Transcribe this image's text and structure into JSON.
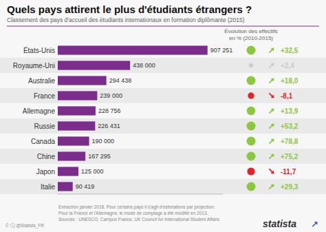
{
  "chart_data": {
    "type": "bar",
    "orientation": "horizontal",
    "title": "Quels pays attirent le plus d'étudiants étrangers ?",
    "subtitle": "Classement des pays d'accueil des étudiants internationaux en formation diplômante (2015)",
    "categories": [
      "États-Unis",
      "Royaume-Uni",
      "Australie",
      "France",
      "Allemagne",
      "Russie",
      "Canada",
      "Chine",
      "Japon",
      "Italie"
    ],
    "values": [
      907251,
      438000,
      294438,
      239000,
      228756,
      226431,
      190000,
      167295,
      125000,
      90419
    ],
    "value_labels": [
      "907 251",
      "438 000",
      "294 438",
      "239 000",
      "228 756",
      "226 431",
      "190 000",
      "167 295",
      "125 000",
      "90 419"
    ],
    "data_labels": true,
    "color": "#7b2d8b",
    "xlim": [
      0,
      1000000
    ],
    "tick_labels": "y",
    "grid": false,
    "evolution": {
      "title": "Évolution des effectifs\nen % (2010-2015)",
      "values": [
        32.5,
        2.4,
        18.0,
        -8.1,
        13.9,
        53.2,
        78.8,
        75.2,
        -11.7,
        29.3
      ],
      "value_labels": [
        "+32,5",
        "+2,4",
        "+18,0",
        "-8,1",
        "+13,9",
        "+53,2",
        "+78,8",
        "+75,2",
        "-11,7",
        "+29,3"
      ],
      "colors": [
        "#8dc63f",
        "#cccccc",
        "#8dc63f",
        "#e0242a",
        "#8dc63f",
        "#8dc63f",
        "#8dc63f",
        "#8dc63f",
        "#e0242a",
        "#8dc63f"
      ]
    },
    "notes": [
      "Extraction janvier 2018. Pour certains pays il s'agit d'estimations par projection.",
      "Pour la France et l'Allemagne, le mode de comptage a été modifié en 2013.",
      "Sources : UNESCO, Campus France, UK Council for International Student Affairs"
    ],
    "annotations": [
      "©  ⓘ  @Statista_FR",
      "statista",
      "↗"
    ]
  }
}
